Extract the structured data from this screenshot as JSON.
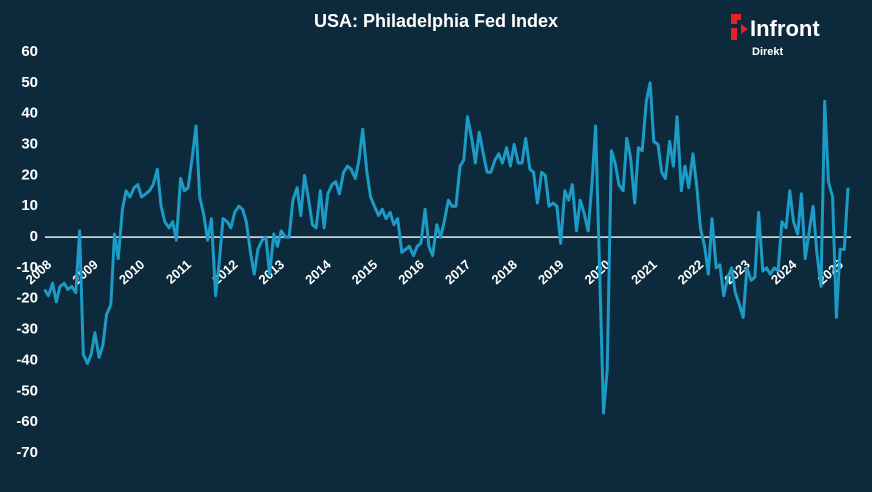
{
  "chart_data": {
    "type": "line",
    "title": "USA: Philadelphia Fed Index",
    "color": "#1b9bc6",
    "x": [
      2008.25,
      2008.33,
      2008.42,
      2008.5,
      2008.58,
      2008.67,
      2008.75,
      2008.83,
      2008.92,
      2009,
      2009.08,
      2009.17,
      2009.25,
      2009.33,
      2009.42,
      2009.5,
      2009.58,
      2009.67,
      2009.75,
      2009.83,
      2009.92,
      2010,
      2010.08,
      2010.17,
      2010.25,
      2010.33,
      2010.42,
      2010.5,
      2010.58,
      2010.67,
      2010.75,
      2010.83,
      2010.92,
      2011,
      2011.08,
      2011.17,
      2011.25,
      2011.33,
      2011.42,
      2011.5,
      2011.58,
      2011.67,
      2011.75,
      2011.83,
      2011.92,
      2012,
      2012.08,
      2012.17,
      2012.25,
      2012.33,
      2012.42,
      2012.5,
      2012.58,
      2012.67,
      2012.75,
      2012.83,
      2012.92,
      2013,
      2013.08,
      2013.17,
      2013.25,
      2013.33,
      2013.42,
      2013.5,
      2013.58,
      2013.67,
      2013.75,
      2013.83,
      2013.92,
      2014,
      2014.08,
      2014.17,
      2014.25,
      2014.33,
      2014.42,
      2014.5,
      2014.58,
      2014.67,
      2014.75,
      2014.83,
      2014.92,
      2015,
      2015.08,
      2015.17,
      2015.25,
      2015.33,
      2015.42,
      2015.5,
      2015.58,
      2015.67,
      2015.75,
      2015.83,
      2015.92,
      2016,
      2016.08,
      2016.17,
      2016.25,
      2016.33,
      2016.42,
      2016.5,
      2016.58,
      2016.67,
      2016.75,
      2016.83,
      2016.92,
      2017,
      2017.08,
      2017.17,
      2017.25,
      2017.33,
      2017.42,
      2017.5,
      2017.58,
      2017.67,
      2017.75,
      2017.83,
      2017.92,
      2018,
      2018.08,
      2018.17,
      2018.25,
      2018.33,
      2018.42,
      2018.5,
      2018.58,
      2018.67,
      2018.75,
      2018.83,
      2018.92,
      2019,
      2019.08,
      2019.17,
      2019.25,
      2019.33,
      2019.42,
      2019.5,
      2019.58,
      2019.67,
      2019.75,
      2019.83,
      2019.92,
      2020,
      2020.08,
      2020.17,
      2020.25,
      2020.33,
      2020.42,
      2020.5,
      2020.58,
      2020.67,
      2020.75,
      2020.83,
      2020.92,
      2021,
      2021.08,
      2021.17,
      2021.25,
      2021.33,
      2021.42,
      2021.5,
      2021.58,
      2021.67,
      2021.75,
      2021.83,
      2021.92,
      2022,
      2022.08,
      2022.17,
      2022.25,
      2022.33,
      2022.42,
      2022.5,
      2022.58,
      2022.67,
      2022.75,
      2022.83,
      2022.92,
      2023,
      2023.08,
      2023.17,
      2023.25,
      2023.33,
      2023.42,
      2023.5,
      2023.58,
      2023.67,
      2023.75,
      2023.83,
      2023.92,
      2024,
      2024.08,
      2024.17,
      2024.25,
      2024.33,
      2024.42,
      2024.5,
      2024.58,
      2024.67,
      2024.75,
      2024.83,
      2024.92,
      2025,
      2025.08,
      2025.17,
      2025.25,
      2025.33,
      2025.42,
      2025.5
    ],
    "values": [
      -17,
      -19,
      -15,
      -21,
      -16,
      -15,
      -17,
      -16,
      -18,
      2,
      -38,
      -41,
      -38,
      -31,
      -39,
      -35,
      -25,
      -22,
      1,
      -7,
      9,
      15,
      13,
      16,
      17,
      13,
      14,
      15,
      17,
      22,
      10,
      5,
      3,
      5,
      -1,
      19,
      15,
      16,
      26,
      36,
      13,
      7,
      -1,
      6,
      -19,
      -8,
      6,
      5,
      3,
      8,
      10,
      9,
      5,
      -5,
      -12,
      -4,
      -1,
      0,
      -12,
      1,
      -3,
      2,
      0,
      0,
      12,
      16,
      7,
      20,
      12,
      4,
      3,
      15,
      3,
      14,
      17,
      18,
      14,
      21,
      23,
      22,
      19,
      25,
      35,
      21,
      13,
      10,
      7,
      9,
      6,
      8,
      4,
      6,
      -5,
      -4,
      -3,
      -6,
      -3,
      -2,
      9,
      -3,
      -6,
      4,
      0,
      5,
      12,
      10,
      10,
      23,
      25,
      39,
      32,
      24,
      34,
      27,
      21,
      21,
      25,
      27,
      24,
      29,
      23,
      30,
      24,
      24,
      32,
      22,
      21,
      11,
      21,
      20,
      10,
      11,
      10,
      -2,
      15,
      12,
      17,
      2,
      12,
      8,
      2,
      17,
      36,
      -13,
      -57,
      -43,
      28,
      24,
      17,
      15,
      32,
      26,
      11,
      29,
      28,
      44,
      50,
      31,
      30,
      21,
      19,
      31,
      23,
      39,
      15,
      23,
      16,
      27,
      17,
      3,
      -3,
      -12,
      6,
      -10,
      -9,
      -19,
      -13,
      -10,
      -18,
      -22,
      -26,
      -10,
      -14,
      -13,
      8,
      -11,
      -10,
      -12,
      -10,
      -11,
      5,
      3,
      15,
      5,
      1,
      14,
      -7,
      2,
      10,
      -5,
      -16,
      44,
      18,
      13,
      -26,
      -4,
      -4,
      16
    ],
    "xlim": [
      2008,
      2025.5
    ],
    "xticks": [
      2008,
      2009,
      2010,
      2011,
      2012,
      2013,
      2014,
      2015,
      2016,
      2017,
      2018,
      2019,
      2020,
      2021,
      2022,
      2023,
      2024,
      2025
    ],
    "ylim": [
      -70,
      60
    ],
    "yticks": [
      60,
      50,
      40,
      30,
      20,
      10,
      0,
      -10,
      -20,
      -30,
      -40,
      -50,
      -60,
      -70
    ]
  },
  "logo": {
    "name": "Infront",
    "sub": "Direkt"
  }
}
